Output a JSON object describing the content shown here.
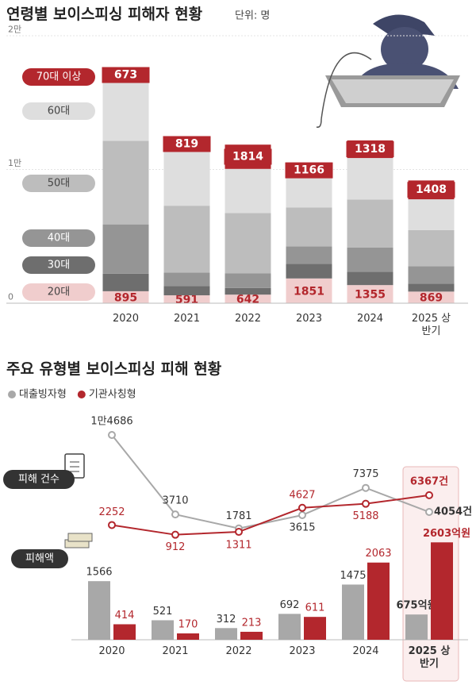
{
  "chart_data": [
    {
      "type": "stacked_bar",
      "title": "연령별 보이스피싱 피해자 현황",
      "subtitle": "단위: 명",
      "categories": [
        "2020",
        "2021",
        "2022",
        "2023",
        "2024",
        "2025 상반기"
      ],
      "series": [
        {
          "name": "20대",
          "color": "#f0cdcd",
          "values": [
            895,
            591,
            642,
            1851,
            1355,
            869
          ],
          "data_labels": true
        },
        {
          "name": "30대",
          "color": "#6e6e6e",
          "values": [
            1310,
            700,
            500,
            1100,
            1000,
            600
          ]
        },
        {
          "name": "40대",
          "color": "#959595",
          "values": [
            3690,
            1000,
            1100,
            1300,
            1800,
            1300
          ]
        },
        {
          "name": "50대",
          "color": "#bdbdbd",
          "values": [
            6250,
            5000,
            4500,
            2900,
            3600,
            2700
          ]
        },
        {
          "name": "60대",
          "color": "#dedede",
          "values": [
            4580,
            4200,
            3300,
            2200,
            3100,
            2300
          ]
        },
        {
          "name": "70대 이상",
          "color": "#b3272d",
          "values": [
            673,
            819,
            1814,
            1166,
            1318,
            1408
          ],
          "data_labels": true
        }
      ],
      "ylim": [
        0,
        20000
      ],
      "yticks": [
        {
          "value": 20000,
          "label": "2만"
        },
        {
          "value": 10000,
          "label": "1만"
        },
        0
      ],
      "grid": true
    },
    {
      "type": "line_bar",
      "title": "주요 유형별 보이스피싱 피해 현황",
      "categories": [
        "2020",
        "2021",
        "2022",
        "2023",
        "2024",
        "2025 상반기"
      ],
      "count_label": "피해 건수",
      "amount_label": "피해액",
      "series": [
        {
          "name": "대출빙자형",
          "color": "#a8a8a8",
          "values": [
            14686,
            3710,
            1781,
            3615,
            7375,
            4054
          ],
          "value_labels": [
            "1만4686",
            "3710",
            "1781",
            "3615",
            "7375",
            "4054건"
          ],
          "amounts": [
            1566,
            521,
            312,
            692,
            1475,
            675
          ],
          "amount_labels": [
            "1566",
            "521",
            "312",
            "692",
            "1475",
            "675억원"
          ]
        },
        {
          "name": "기관사칭형",
          "color": "#b3272d",
          "values": [
            2252,
            912,
            1311,
            4627,
            5188,
            6367
          ],
          "value_labels": [
            "2252",
            "912",
            "1311",
            "4627",
            "5188",
            "6367건"
          ],
          "amounts": [
            414,
            170,
            213,
            611,
            2063,
            2603
          ],
          "amount_labels": [
            "414",
            "170",
            "213",
            "611",
            "2063",
            "2603억원"
          ]
        }
      ],
      "ylim": [
        0,
        16000
      ],
      "y2lim": [
        0,
        2800
      ]
    }
  ]
}
